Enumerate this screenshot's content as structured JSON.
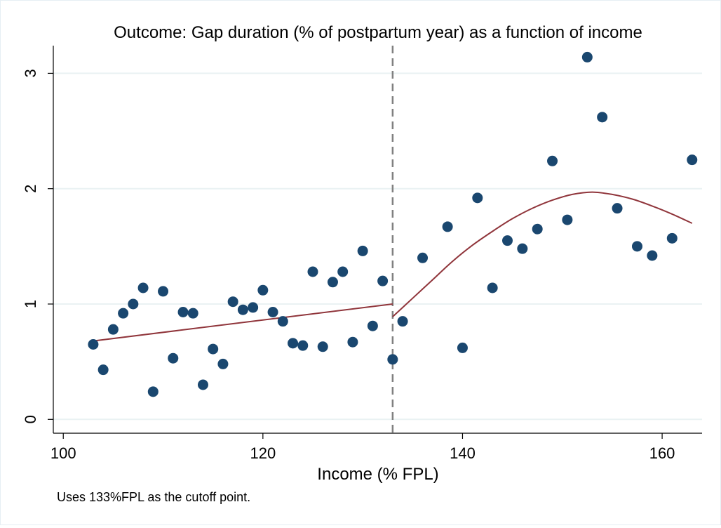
{
  "colors": {
    "background": "#ffffff",
    "marker": "#1a476f",
    "fit_line": "#90353b",
    "gridline": "#eaf2f3",
    "cutoff_line": "#808080"
  },
  "chart_data": {
    "type": "scatter",
    "title": "Outcome: Gap duration (% of postpartum year) as a function of income",
    "xlabel": "Income (% FPL)",
    "ylabel": "",
    "note": "Uses 133%FPL as the cutoff point.",
    "xlim": [
      99,
      164
    ],
    "ylim": [
      -0.12,
      3.24
    ],
    "xticks": [
      100,
      120,
      140,
      160
    ],
    "yticks": [
      0,
      1,
      2,
      3
    ],
    "grid": true,
    "cutoff_x": 133,
    "points": [
      {
        "x": 103,
        "y": 0.65
      },
      {
        "x": 104,
        "y": 0.43
      },
      {
        "x": 105,
        "y": 0.78
      },
      {
        "x": 106,
        "y": 0.92
      },
      {
        "x": 107,
        "y": 1.0
      },
      {
        "x": 108,
        "y": 1.14
      },
      {
        "x": 109,
        "y": 0.24
      },
      {
        "x": 110,
        "y": 1.11
      },
      {
        "x": 111,
        "y": 0.53
      },
      {
        "x": 112,
        "y": 0.93
      },
      {
        "x": 113,
        "y": 0.92
      },
      {
        "x": 114,
        "y": 0.3
      },
      {
        "x": 115,
        "y": 0.61
      },
      {
        "x": 116,
        "y": 0.48
      },
      {
        "x": 117,
        "y": 1.02
      },
      {
        "x": 118,
        "y": 0.95
      },
      {
        "x": 119,
        "y": 0.97
      },
      {
        "x": 120,
        "y": 1.12
      },
      {
        "x": 121,
        "y": 0.93
      },
      {
        "x": 122,
        "y": 0.85
      },
      {
        "x": 123,
        "y": 0.66
      },
      {
        "x": 124,
        "y": 0.64
      },
      {
        "x": 125,
        "y": 1.28
      },
      {
        "x": 126,
        "y": 0.63
      },
      {
        "x": 127,
        "y": 1.19
      },
      {
        "x": 128,
        "y": 1.28
      },
      {
        "x": 129,
        "y": 0.67
      },
      {
        "x": 130,
        "y": 1.46
      },
      {
        "x": 131,
        "y": 0.81
      },
      {
        "x": 132,
        "y": 1.2
      },
      {
        "x": 133,
        "y": 0.52
      },
      {
        "x": 134,
        "y": 0.85
      },
      {
        "x": 136,
        "y": 1.4
      },
      {
        "x": 138.5,
        "y": 1.67
      },
      {
        "x": 140,
        "y": 0.62
      },
      {
        "x": 141.5,
        "y": 1.92
      },
      {
        "x": 143,
        "y": 1.14
      },
      {
        "x": 144.5,
        "y": 1.55
      },
      {
        "x": 146,
        "y": 1.48
      },
      {
        "x": 147.5,
        "y": 1.65
      },
      {
        "x": 149,
        "y": 2.24
      },
      {
        "x": 150.5,
        "y": 1.73
      },
      {
        "x": 152.5,
        "y": 3.14
      },
      {
        "x": 154,
        "y": 2.62
      },
      {
        "x": 155.5,
        "y": 1.83
      },
      {
        "x": 157.5,
        "y": 1.5
      },
      {
        "x": 159,
        "y": 1.42
      },
      {
        "x": 161,
        "y": 1.57
      },
      {
        "x": 163,
        "y": 2.25
      }
    ],
    "fit_left": [
      [
        103,
        0.68
      ],
      [
        133,
        1.0
      ]
    ],
    "fit_right": [
      [
        133,
        0.89
      ],
      [
        135,
        1.05
      ],
      [
        137,
        1.21
      ],
      [
        139,
        1.37
      ],
      [
        141,
        1.51
      ],
      [
        143,
        1.63
      ],
      [
        145,
        1.74
      ],
      [
        147,
        1.83
      ],
      [
        149,
        1.9
      ],
      [
        151,
        1.95
      ],
      [
        153,
        1.97
      ],
      [
        155,
        1.95
      ],
      [
        157,
        1.91
      ],
      [
        159,
        1.85
      ],
      [
        161,
        1.78
      ],
      [
        163,
        1.7
      ]
    ]
  }
}
